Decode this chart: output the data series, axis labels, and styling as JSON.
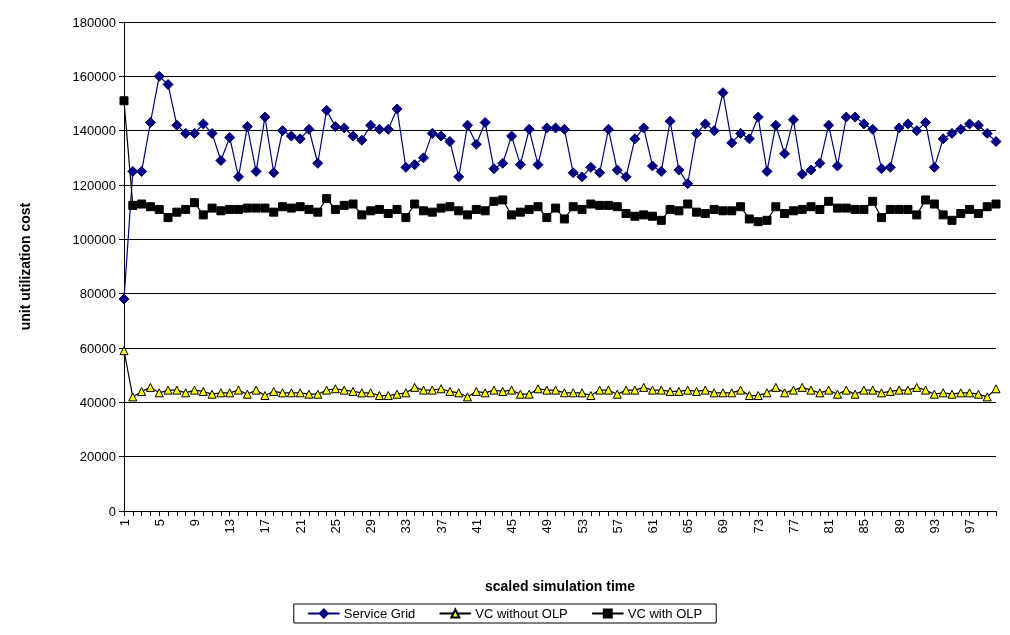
{
  "chart_data": {
    "type": "line",
    "xlabel": "scaled simulation time",
    "ylabel": "unit utilization cost",
    "categories": [
      "1",
      null,
      null,
      null,
      "5",
      null,
      null,
      null,
      "9",
      null,
      null,
      null,
      "13",
      null,
      null,
      null,
      "17",
      null,
      null,
      null,
      "21",
      null,
      null,
      null,
      "25",
      null,
      null,
      null,
      "29",
      null,
      null,
      null,
      "33",
      null,
      null,
      null,
      "37",
      null,
      null,
      null,
      "41",
      null,
      null,
      null,
      "45",
      null,
      null,
      null,
      "49",
      null,
      null,
      null,
      "53",
      null,
      null,
      null,
      "57",
      null,
      null,
      null,
      "61",
      null,
      null,
      null,
      "65",
      null,
      null,
      null,
      "69",
      null,
      null,
      null,
      "73",
      null,
      null,
      null,
      "77",
      null,
      null,
      null,
      "81",
      null,
      null,
      null,
      "85",
      null,
      null,
      null,
      "89",
      null,
      null,
      null,
      "93",
      null,
      null,
      null,
      "97",
      null,
      null,
      null
    ],
    "ylim": [
      0,
      180000
    ],
    "yticks": [
      0,
      20000,
      40000,
      60000,
      80000,
      100000,
      120000,
      140000,
      160000,
      180000
    ],
    "grid": "y",
    "legend": "bottom",
    "series": [
      {
        "name": "Service Grid",
        "color": "#000080",
        "marker": "diamond",
        "values": [
          78000,
          125000,
          125000,
          143000,
          160000,
          157000,
          142000,
          139000,
          139000,
          142500,
          139000,
          129000,
          137500,
          123000,
          141500,
          125000,
          145000,
          124500,
          140000,
          138000,
          137000,
          140500,
          128000,
          147500,
          141500,
          141000,
          138000,
          136500,
          142000,
          140500,
          140500,
          148000,
          126500,
          127500,
          130000,
          139000,
          138000,
          136000,
          123000,
          142000,
          135000,
          143000,
          126000,
          128000,
          138000,
          127500,
          140500,
          127500,
          141000,
          141000,
          140500,
          124500,
          123000,
          126500,
          124500,
          140500,
          125500,
          123000,
          137000,
          141000,
          127000,
          125000,
          143500,
          125500,
          120500,
          139000,
          142500,
          140000,
          154000,
          135500,
          139000,
          137000,
          145000,
          125000,
          142000,
          131500,
          144000,
          124000,
          125500,
          128000,
          142000,
          127000,
          145000,
          145000,
          142500,
          140500,
          126000,
          126500,
          141000,
          142500,
          140000,
          143000,
          126500,
          137000,
          139000,
          140500,
          142500,
          142000,
          139000,
          136000
        ]
      },
      {
        "name": "VC without OLP",
        "color": "#ffff00",
        "marker": "triangle",
        "values": [
          59000,
          42000,
          44000,
          45500,
          43500,
          44500,
          44500,
          43500,
          44500,
          44000,
          43000,
          43500,
          43500,
          44500,
          43000,
          44500,
          42500,
          44000,
          43500,
          43500,
          43500,
          43000,
          43000,
          44500,
          45000,
          44500,
          44000,
          43500,
          43500,
          42500,
          42500,
          43000,
          43500,
          45500,
          44500,
          44500,
          45000,
          44000,
          43500,
          42000,
          44000,
          43500,
          44500,
          44000,
          44500,
          43000,
          43000,
          45000,
          44500,
          44500,
          43500,
          43500,
          43500,
          42500,
          44500,
          44500,
          43000,
          44500,
          44500,
          45500,
          44500,
          44500,
          44000,
          44000,
          44500,
          44000,
          44500,
          43500,
          43500,
          43500,
          44500,
          42500,
          42500,
          43500,
          45500,
          43500,
          44500,
          45500,
          44500,
          43500,
          44500,
          43000,
          44500,
          43000,
          44500,
          44500,
          43500,
          44000,
          44500,
          44500,
          45500,
          44500,
          43000,
          43500,
          43000,
          43500,
          43500,
          43000,
          42000,
          45000
        ]
      },
      {
        "name": "VC with OLP",
        "color": "#000000",
        "marker": "square",
        "values": [
          151000,
          112500,
          113000,
          112000,
          111000,
          108000,
          110000,
          111000,
          113500,
          109000,
          111500,
          110500,
          111000,
          111000,
          111500,
          111500,
          111500,
          110000,
          112000,
          111500,
          112000,
          111000,
          110000,
          115000,
          111000,
          112500,
          113000,
          109000,
          110500,
          111000,
          109500,
          111000,
          108000,
          113000,
          110500,
          110000,
          111500,
          112000,
          110500,
          109000,
          111000,
          110500,
          114000,
          114500,
          109000,
          110000,
          111000,
          112000,
          108000,
          111500,
          107500,
          112000,
          111000,
          113000,
          112500,
          112500,
          112000,
          109500,
          108500,
          109000,
          108500,
          107000,
          111000,
          110500,
          113000,
          110000,
          109500,
          111000,
          110500,
          110500,
          112000,
          107500,
          106500,
          107000,
          112000,
          109500,
          110500,
          111000,
          112000,
          111000,
          114000,
          111500,
          111500,
          111000,
          111000,
          114000,
          108000,
          111000,
          111000,
          111000,
          109000,
          114500,
          113000,
          109000,
          107000,
          109500,
          111000,
          109500,
          112000,
          113000
        ]
      }
    ]
  }
}
